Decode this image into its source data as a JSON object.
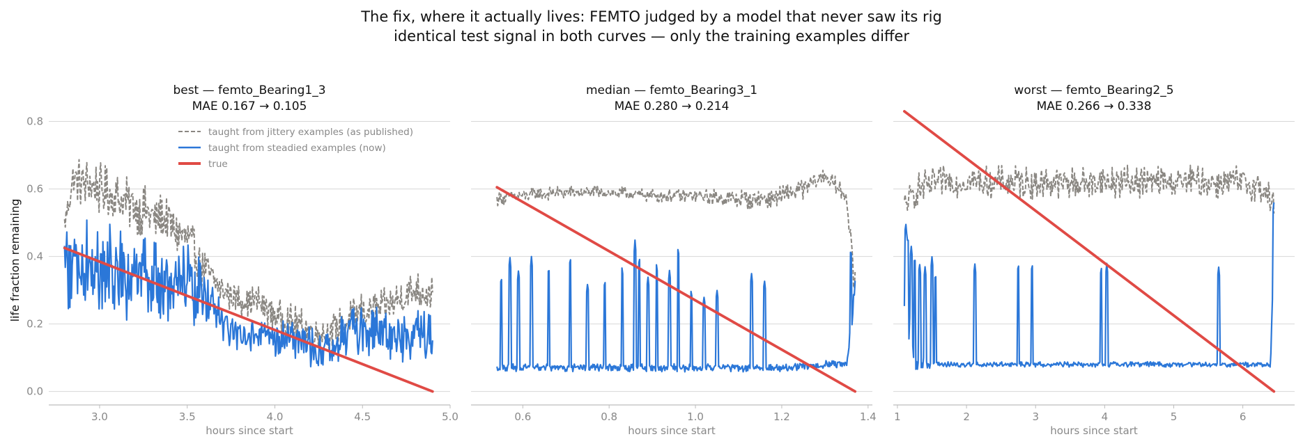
{
  "figure": {
    "title_line1": "The fix, where it actually lives: FEMTO judged by a model that never saw its rig",
    "title_line2": "identical test signal in both curves — only the training examples differ",
    "ylabel": "life fraction remaining"
  },
  "legend": {
    "placement": "top-right of first panel",
    "entries": [
      {
        "label": "taught from jittery examples (as published)",
        "style": "dashed",
        "color": "#8a8782"
      },
      {
        "label": "taught from steadied examples (now)",
        "style": "solid",
        "color": "#2b77d8"
      },
      {
        "label": "true",
        "style": "solid-thick",
        "color": "#e04a45"
      }
    ]
  },
  "chart_data": [
    {
      "type": "line",
      "title_line1": "best — femto_Bearing1_3",
      "title_line2": "MAE 0.167 → 0.105",
      "xlabel": "hours since start",
      "ylabel": "life fraction remaining",
      "xlim": [
        2.71,
        5.0
      ],
      "ylim": [
        -0.04,
        0.83
      ],
      "xticks": [
        3.0,
        3.5,
        4.0,
        4.5,
        5.0
      ],
      "xticklabels": [
        "3.0",
        "3.5",
        "4.0",
        "4.5",
        "5.0"
      ],
      "yticks": [
        0.0,
        0.2,
        0.4,
        0.6,
        0.8
      ],
      "yticklabels": [
        "0.0",
        "0.2",
        "0.4",
        "0.6",
        "0.8"
      ],
      "grid": "horizontal",
      "series": [
        {
          "name": "taught from jittery examples (as published)",
          "style": "dashed",
          "color": "#8a8782",
          "x": [
            2.8,
            2.85,
            2.9,
            3.0,
            3.1,
            3.2,
            3.3,
            3.4,
            3.5,
            3.6,
            3.7,
            3.8,
            3.9,
            4.0,
            4.1,
            4.2,
            4.3,
            4.4,
            4.5,
            4.6,
            4.7,
            4.8,
            4.9
          ],
          "y": [
            0.5,
            0.63,
            0.62,
            0.6,
            0.57,
            0.55,
            0.52,
            0.5,
            0.45,
            0.36,
            0.3,
            0.27,
            0.27,
            0.23,
            0.2,
            0.18,
            0.17,
            0.2,
            0.24,
            0.24,
            0.27,
            0.3,
            0.29
          ],
          "jitter": [
            0.04,
            0.06,
            0.08,
            0.08,
            0.08,
            0.08,
            0.08,
            0.08,
            0.08,
            0.07,
            0.05,
            0.05,
            0.05,
            0.05,
            0.06,
            0.06,
            0.05,
            0.06,
            0.06,
            0.06,
            0.06,
            0.06,
            0.05
          ]
        },
        {
          "name": "taught from steadied examples (now)",
          "style": "solid",
          "color": "#2b77d8",
          "x": [
            2.8,
            2.85,
            2.9,
            3.0,
            3.1,
            3.2,
            3.3,
            3.4,
            3.5,
            3.6,
            3.7,
            3.8,
            3.9,
            4.0,
            4.1,
            4.2,
            4.3,
            4.4,
            4.5,
            4.6,
            4.7,
            4.8,
            4.9
          ],
          "y": [
            0.4,
            0.35,
            0.38,
            0.37,
            0.35,
            0.34,
            0.33,
            0.3,
            0.32,
            0.28,
            0.2,
            0.17,
            0.17,
            0.15,
            0.16,
            0.13,
            0.12,
            0.17,
            0.18,
            0.17,
            0.16,
            0.18,
            0.15
          ],
          "jitter": [
            0.12,
            0.16,
            0.16,
            0.14,
            0.14,
            0.13,
            0.12,
            0.12,
            0.12,
            0.1,
            0.06,
            0.05,
            0.05,
            0.05,
            0.06,
            0.06,
            0.06,
            0.07,
            0.08,
            0.08,
            0.08,
            0.08,
            0.08
          ]
        },
        {
          "name": "true",
          "style": "solid-thick",
          "color": "#e04a45",
          "x": [
            2.8,
            4.9
          ],
          "y": [
            0.425,
            0.0
          ],
          "jitter": [
            0,
            0
          ]
        }
      ]
    },
    {
      "type": "line",
      "title_line1": "median — femto_Bearing3_1",
      "title_line2": "MAE 0.280 → 0.214",
      "xlabel": "hours since start",
      "xlim": [
        0.48,
        1.41
      ],
      "ylim": [
        -0.04,
        0.83
      ],
      "xticks": [
        0.6,
        0.8,
        1.0,
        1.2,
        1.4
      ],
      "xticklabels": [
        "0.6",
        "0.8",
        "1.0",
        "1.2",
        "1.4"
      ],
      "grid": "horizontal",
      "series": [
        {
          "name": "taught from jittery examples (as published)",
          "style": "dashed",
          "color": "#8a8782",
          "x": [
            0.54,
            0.6,
            0.7,
            0.8,
            0.9,
            1.0,
            1.1,
            1.15,
            1.2,
            1.25,
            1.3,
            1.33,
            1.35,
            1.37
          ],
          "y": [
            0.57,
            0.58,
            0.59,
            0.59,
            0.58,
            0.58,
            0.57,
            0.57,
            0.58,
            0.6,
            0.64,
            0.6,
            0.58,
            0.3
          ],
          "jitter": [
            0.02,
            0.02,
            0.02,
            0.02,
            0.02,
            0.02,
            0.03,
            0.03,
            0.03,
            0.03,
            0.03,
            0.03,
            0.02,
            0.06
          ]
        },
        {
          "name": "taught from steadied examples (now)",
          "style": "solid",
          "color": "#2b77d8",
          "x": [
            0.54,
            0.6,
            0.7,
            0.8,
            0.9,
            1.0,
            1.1,
            1.2,
            1.3,
            1.35,
            1.37
          ],
          "y": [
            0.07,
            0.07,
            0.07,
            0.07,
            0.07,
            0.07,
            0.07,
            0.07,
            0.08,
            0.08,
            0.3
          ],
          "jitter": [
            0.012,
            0.012,
            0.012,
            0.012,
            0.012,
            0.012,
            0.012,
            0.012,
            0.012,
            0.012,
            0.05
          ],
          "spikes": {
            "x": [
              0.55,
              0.57,
              0.59,
              0.62,
              0.66,
              0.71,
              0.75,
              0.79,
              0.83,
              0.86,
              0.87,
              0.89,
              0.91,
              0.94,
              0.96,
              0.99,
              1.02,
              1.05,
              1.13,
              1.16,
              1.36
            ],
            "y": [
              0.34,
              0.4,
              0.36,
              0.4,
              0.37,
              0.4,
              0.32,
              0.33,
              0.37,
              0.45,
              0.4,
              0.34,
              0.38,
              0.36,
              0.43,
              0.3,
              0.28,
              0.3,
              0.35,
              0.33,
              0.42
            ]
          }
        },
        {
          "name": "true",
          "style": "solid-thick",
          "color": "#e04a45",
          "x": [
            0.54,
            1.37
          ],
          "y": [
            0.605,
            0.0
          ],
          "jitter": [
            0,
            0
          ]
        }
      ]
    },
    {
      "type": "line",
      "title_line1": "worst — femto_Bearing2_5",
      "title_line2": "MAE 0.266 → 0.338",
      "xlabel": "hours since start",
      "xlim": [
        0.94,
        6.75
      ],
      "ylim": [
        -0.04,
        0.83
      ],
      "xticks": [
        1,
        2,
        3,
        4,
        5,
        6
      ],
      "xticklabels": [
        "1",
        "2",
        "3",
        "4",
        "5",
        "6"
      ],
      "grid": "horizontal",
      "series": [
        {
          "name": "taught from jittery examples (as published)",
          "style": "dashed",
          "color": "#8a8782",
          "x": [
            1.1,
            1.3,
            1.6,
            2.0,
            2.5,
            3.0,
            3.5,
            4.0,
            4.5,
            5.0,
            5.5,
            6.0,
            6.3,
            6.45
          ],
          "y": [
            0.55,
            0.6,
            0.62,
            0.62,
            0.62,
            0.62,
            0.62,
            0.62,
            0.62,
            0.62,
            0.62,
            0.62,
            0.6,
            0.55
          ],
          "jitter": [
            0.05,
            0.05,
            0.05,
            0.05,
            0.05,
            0.05,
            0.05,
            0.05,
            0.05,
            0.05,
            0.05,
            0.05,
            0.05,
            0.05
          ]
        },
        {
          "name": "taught from steadied examples (now)",
          "style": "solid",
          "color": "#2b77d8",
          "x": [
            1.1,
            1.3,
            1.6,
            2.0,
            3.0,
            4.0,
            5.0,
            6.0,
            6.4,
            6.45
          ],
          "y": [
            0.2,
            0.08,
            0.08,
            0.08,
            0.08,
            0.08,
            0.08,
            0.08,
            0.08,
            0.4
          ],
          "jitter": [
            0.15,
            0.03,
            0.008,
            0.008,
            0.008,
            0.008,
            0.008,
            0.008,
            0.008,
            0.05
          ],
          "spikes": {
            "x": [
              1.12,
              1.15,
              1.2,
              1.25,
              1.32,
              1.4,
              1.5,
              1.55,
              2.12,
              2.75,
              2.95,
              3.95,
              4.03,
              5.65,
              6.45
            ],
            "y": [
              0.5,
              0.46,
              0.43,
              0.4,
              0.38,
              0.37,
              0.4,
              0.35,
              0.38,
              0.38,
              0.38,
              0.37,
              0.38,
              0.37,
              0.56
            ]
          }
        },
        {
          "name": "true",
          "style": "solid-thick",
          "color": "#e04a45",
          "x": [
            1.1,
            6.45
          ],
          "y": [
            0.83,
            0.0
          ],
          "jitter": [
            0,
            0
          ]
        }
      ]
    }
  ]
}
